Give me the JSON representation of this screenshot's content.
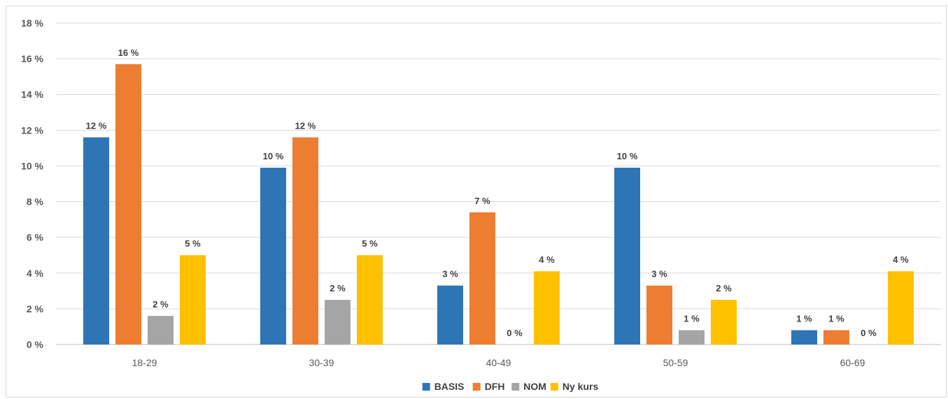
{
  "chart_data": {
    "type": "bar",
    "categories": [
      "18-29",
      "30-39",
      "40-49",
      "50-59",
      "60-69"
    ],
    "series": [
      {
        "name": "BASIS",
        "color": "#2E75B6",
        "values": [
          11.6,
          9.9,
          3.3,
          9.9,
          0.8
        ],
        "labels": [
          "12 %",
          "10 %",
          "3 %",
          "10 %",
          "1 %"
        ]
      },
      {
        "name": "DFH",
        "color": "#ED7D31",
        "values": [
          15.7,
          11.6,
          7.4,
          3.3,
          0.8
        ],
        "labels": [
          "16 %",
          "12 %",
          "7 %",
          "3 %",
          "1 %"
        ]
      },
      {
        "name": "NOM",
        "color": "#A5A5A5",
        "values": [
          1.6,
          2.5,
          0,
          0.8,
          0
        ],
        "labels": [
          "2 %",
          "2 %",
          "0 %",
          "1 %",
          "0 %"
        ]
      },
      {
        "name": "Ny kurs",
        "color": "#FFC000",
        "values": [
          5.0,
          5.0,
          4.1,
          2.5,
          4.1
        ],
        "labels": [
          "5 %",
          "5 %",
          "4 %",
          "2 %",
          "4 %"
        ]
      }
    ],
    "yticks": [
      "0 %",
      "2 %",
      "4 %",
      "6 %",
      "8 %",
      "10 %",
      "12 %",
      "14 %",
      "16 %",
      "18 %"
    ],
    "ylim": [
      0,
      18
    ],
    "ylabel": "",
    "xlabel": "",
    "grid": true,
    "legend_position": "bottom"
  }
}
